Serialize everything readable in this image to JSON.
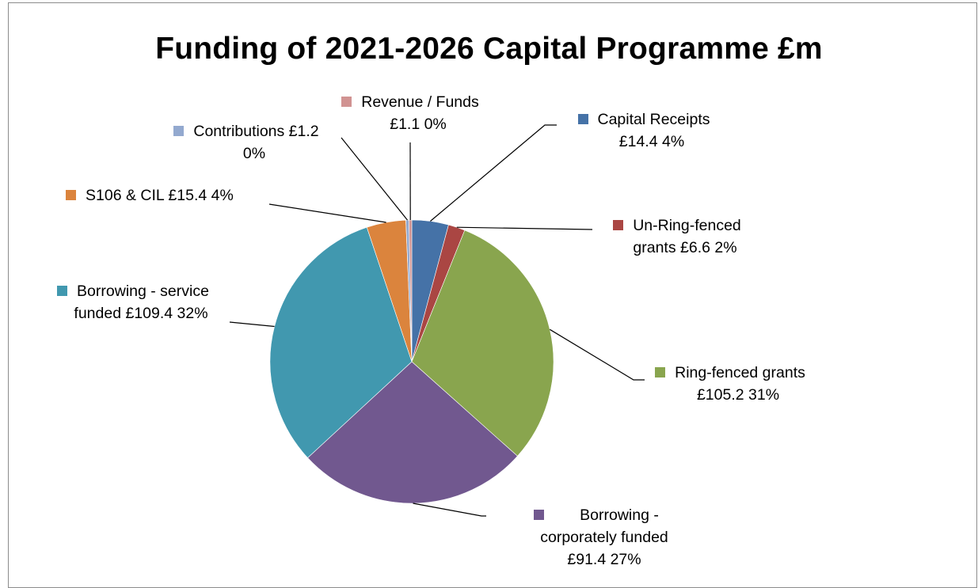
{
  "chart_data": {
    "type": "pie",
    "title": "Funding of 2021-2026 Capital Programme £m",
    "slices": [
      {
        "name": "Capital Receipts",
        "value": 14.4,
        "percent_label": "4%",
        "color": "#4572a7"
      },
      {
        "name": "Un-Ring-fenced grants",
        "value": 6.6,
        "percent_label": "2%",
        "color": "#aa4643"
      },
      {
        "name": "Ring-fenced grants",
        "value": 105.2,
        "percent_label": "31%",
        "color": "#89a54e"
      },
      {
        "name": "Borrowing - corporately funded",
        "value": 91.4,
        "percent_label": "27%",
        "color": "#71588f"
      },
      {
        "name": "Borrowing - service funded",
        "value": 109.4,
        "percent_label": "32%",
        "color": "#4198af"
      },
      {
        "name": "S106 & CIL",
        "value": 15.4,
        "percent_label": "4%",
        "color": "#db843d"
      },
      {
        "name": "Contributions",
        "value": 1.2,
        "percent_label": "0%",
        "color": "#93a9cf"
      },
      {
        "name": "Revenue / Funds",
        "value": 1.1,
        "percent_label": "0%",
        "color": "#d19392"
      }
    ],
    "labels": {
      "capital_receipts": {
        "line1": "Capital Receipts",
        "line2": "£14.4 4%"
      },
      "un_ring_fenced": {
        "line1": "Un-Ring-fenced",
        "line2": "grants £6.6 2%"
      },
      "ring_fenced": {
        "line1": "Ring-fenced grants",
        "line2": "£105.2 31%"
      },
      "borrowing_corporate": {
        "line1": "Borrowing -",
        "line2": "corporately funded",
        "line3": "£91.4 27%"
      },
      "borrowing_service": {
        "line1": "Borrowing  - service",
        "line2": "funded £109.4 32%"
      },
      "s106": {
        "line1": "S106 & CIL £15.4 4%"
      },
      "contributions": {
        "line1": "Contributions £1.2",
        "line2": "0%"
      },
      "revenue": {
        "line1": "Revenue / Funds",
        "line2": "£1.1 0%"
      }
    }
  }
}
